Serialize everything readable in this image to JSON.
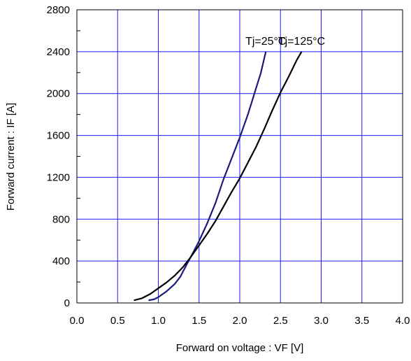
{
  "chart_data": {
    "type": "line",
    "xlabel": "Forward on voltage : VF [V]",
    "ylabel": "Forward current : IF [A]",
    "xlim": [
      0.0,
      4.0
    ],
    "ylim": [
      0,
      2800
    ],
    "x_ticks": [
      "0.0",
      "0.5",
      "1.0",
      "1.5",
      "2.0",
      "2.5",
      "3.0",
      "3.5",
      "4.0"
    ],
    "y_ticks": [
      "0",
      "400",
      "800",
      "1200",
      "1600",
      "2000",
      "2400",
      "2800"
    ],
    "grid": true,
    "colors": {
      "grid": "#1a1aff",
      "frame": "#000000"
    },
    "series": [
      {
        "name": "Tj=25°C",
        "color": "#1b1b7a",
        "points": [
          [
            0.88,
            25
          ],
          [
            0.95,
            35
          ],
          [
            1.0,
            55
          ],
          [
            1.1,
            110
          ],
          [
            1.2,
            180
          ],
          [
            1.27,
            250
          ],
          [
            1.35,
            370
          ],
          [
            1.42,
            470
          ],
          [
            1.5,
            590
          ],
          [
            1.6,
            760
          ],
          [
            1.7,
            950
          ],
          [
            1.8,
            1180
          ],
          [
            1.9,
            1380
          ],
          [
            2.0,
            1580
          ],
          [
            2.1,
            1800
          ],
          [
            2.2,
            2050
          ],
          [
            2.26,
            2200
          ],
          [
            2.32,
            2400
          ]
        ]
      },
      {
        "name": "Tj=125°C",
        "color": "#000000",
        "points": [
          [
            0.7,
            25
          ],
          [
            0.8,
            45
          ],
          [
            0.9,
            85
          ],
          [
            1.0,
            140
          ],
          [
            1.1,
            195
          ],
          [
            1.2,
            260
          ],
          [
            1.3,
            340
          ],
          [
            1.4,
            440
          ],
          [
            1.5,
            550
          ],
          [
            1.6,
            660
          ],
          [
            1.7,
            780
          ],
          [
            1.8,
            920
          ],
          [
            1.9,
            1060
          ],
          [
            2.0,
            1190
          ],
          [
            2.1,
            1340
          ],
          [
            2.2,
            1490
          ],
          [
            2.3,
            1660
          ],
          [
            2.4,
            1840
          ],
          [
            2.5,
            2010
          ],
          [
            2.6,
            2160
          ],
          [
            2.7,
            2320
          ],
          [
            2.76,
            2400
          ]
        ]
      }
    ]
  }
}
